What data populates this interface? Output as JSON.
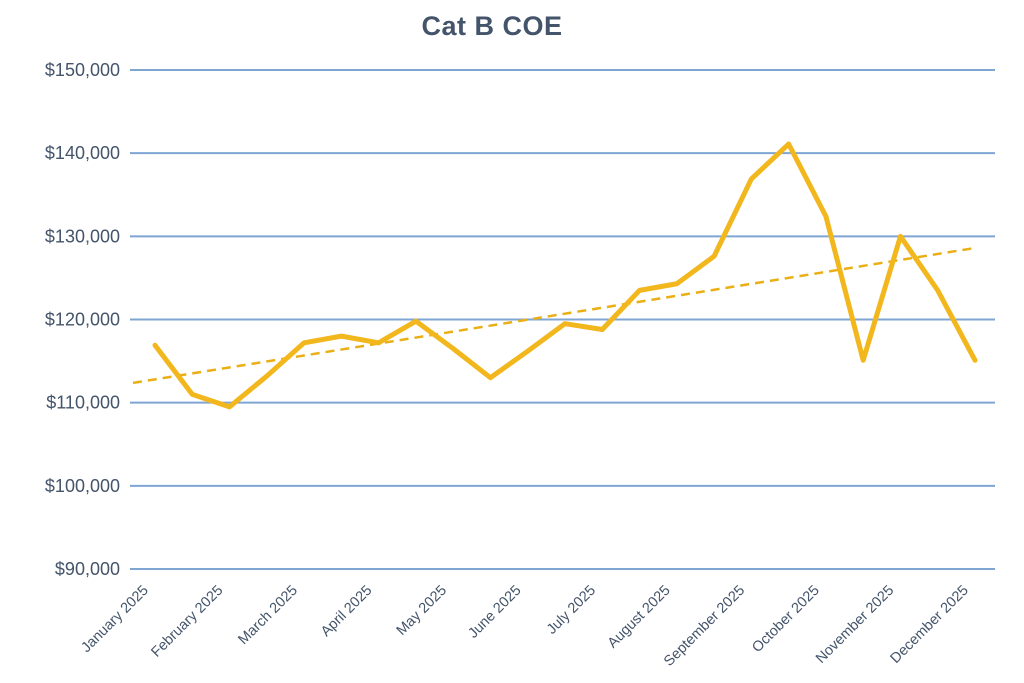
{
  "page": {
    "background": "#FFFFFF"
  },
  "chart_data": {
    "type": "line",
    "title": "Cat B COE",
    "title_color": "#44546A",
    "legend": "none",
    "x_tick_labels": [
      "January 2025",
      "February 2025",
      "March 2025",
      "April 2025",
      "May 2025",
      "June 2025",
      "July 2025",
      "August 2025",
      "September 2025",
      "October 2025",
      "November 2025",
      "December 2025"
    ],
    "x_points_per_label": 2,
    "x_tick_label_rotation_deg": -45,
    "series": [
      {
        "name": "Cat B COE",
        "color": "#F2B71D",
        "line_width": 5,
        "values": [
          116900,
          111000,
          109500,
          113200,
          117200,
          118000,
          117200,
          119800,
          116500,
          113000,
          116200,
          119500,
          118800,
          123500,
          124300,
          127600,
          136900,
          141100,
          132400,
          115100,
          130000,
          123500,
          115100
        ]
      }
    ],
    "trendline": {
      "style": "dashed",
      "color": "#E9AF15",
      "start_value": 112800,
      "end_value": 128600
    },
    "y_axis": {
      "min": 90000,
      "max": 150000,
      "step": 10000,
      "format": "currency-USD-thousands",
      "tick_values": [
        90000,
        100000,
        110000,
        120000,
        130000,
        140000,
        150000
      ],
      "tick_labels": [
        "$90,000",
        "$100,000",
        "$110,000",
        "$120,000",
        "$130,000",
        "$140,000",
        "$150,000"
      ],
      "label_color": "#44546A"
    },
    "grid": {
      "horizontal": true,
      "vertical": false,
      "color": "#7FA5D3"
    }
  }
}
